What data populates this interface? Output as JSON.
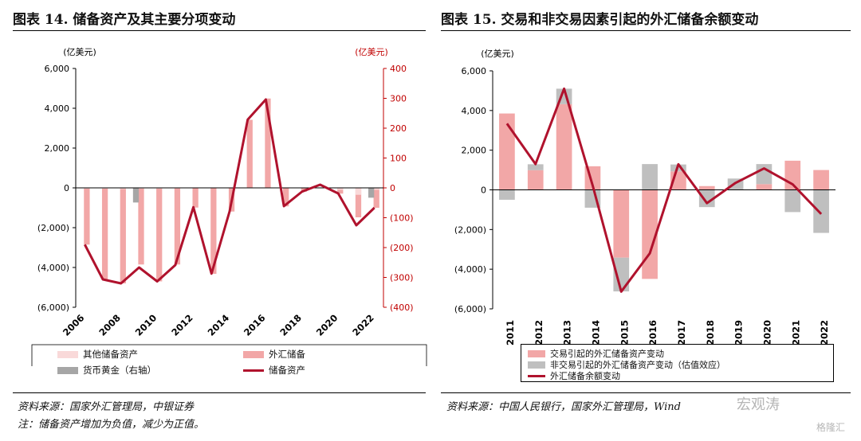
{
  "left": {
    "title": "图表 14. 储备资产及其主要分项变动",
    "unit_left": "(亿美元)",
    "unit_right": "(亿美元)",
    "source": "资料来源：国家外汇管理局，中银证券",
    "note": "注：储备资产增加为负值，减少为正值。"
  },
  "right": {
    "title": "图表 15. 交易和非交易因素引起的外汇储备余额变动",
    "unit_left": "(亿美元)",
    "source": "资料来源：中国人民银行，国家外汇管理局，Wind"
  },
  "watermark": {
    "text1": "宏观涛",
    "text2": "格隆汇"
  },
  "colors": {
    "pink": "#f2a7a7",
    "lightpink": "#f9d9d9",
    "gray": "#a6a6a6",
    "silver": "#bfbfbf",
    "line": "#b0122d",
    "axis_red": "#c00000"
  },
  "chart_data": [
    {
      "type": "bar",
      "title": "图表 14. 储备资产及其主要分项变动",
      "x": [
        "2006",
        "2007",
        "2008",
        "2009",
        "2010",
        "2011",
        "2012",
        "2013",
        "2014",
        "2015",
        "2016",
        "2017",
        "2018",
        "2019",
        "2020",
        "2021",
        "2022"
      ],
      "xticklabels": [
        "2006",
        "2008",
        "2010",
        "2012",
        "2014",
        "2016",
        "2018",
        "2020",
        "2022"
      ],
      "ylim_left": [
        -6000,
        6000
      ],
      "yticks_left": [
        6000,
        4000,
        2000,
        0,
        -2000,
        -4000,
        -6000
      ],
      "yticklabels_left": [
        "6,000",
        "4,000",
        "2,000",
        "0",
        "(2,000)",
        "(4,000)",
        "(6,000)"
      ],
      "ylim_right": [
        -400,
        400
      ],
      "yticks_right": [
        400,
        300,
        200,
        100,
        0,
        -100,
        -200,
        -300,
        -400
      ],
      "yticklabels_right": [
        "400",
        "300",
        "200",
        "100",
        "0",
        "(100)",
        "(200)",
        "(300)",
        "(400)"
      ],
      "series": [
        {
          "name": "其他储备资产",
          "axis": "left",
          "kind": "bar",
          "color": "#f9d9d9",
          "values": [
            -40,
            -40,
            -60,
            -40,
            -40,
            -30,
            -20,
            -10,
            -10,
            -20,
            -10,
            -20,
            -20,
            -10,
            -100,
            -350,
            -100
          ]
        },
        {
          "name": "外汇储备",
          "axis": "left",
          "kind": "bar",
          "color": "#f2a7a7",
          "values": [
            -2850,
            -4600,
            -4800,
            -3850,
            -4700,
            -3850,
            -990,
            -4320,
            -1190,
            3420,
            4490,
            -930,
            -190,
            20,
            -290,
            -1480,
            -1000
          ]
        },
        {
          "name": "货币黄金（右轴）",
          "axis": "right",
          "kind": "bar",
          "color": "#a6a6a6",
          "values": [
            0,
            0,
            0,
            -49,
            0,
            0,
            0,
            0,
            0,
            0,
            0,
            0,
            0,
            0,
            0,
            0,
            -33
          ]
        },
        {
          "name": "储备资产",
          "axis": "left",
          "kind": "line",
          "color": "#b0122d",
          "values": [
            -2850,
            -4600,
            -4800,
            -4000,
            -4700,
            -3880,
            -970,
            -4310,
            -1180,
            3430,
            4440,
            -920,
            -190,
            160,
            -280,
            -1880,
            -1000
          ]
        }
      ]
    },
    {
      "type": "bar",
      "title": "图表 15. 交易和非交易因素引起的外汇储备余额变动",
      "x": [
        "2011",
        "2012",
        "2013",
        "2014",
        "2015",
        "2016",
        "2017",
        "2018",
        "2019",
        "2020",
        "2021",
        "2022"
      ],
      "ylim": [
        -6000,
        6000
      ],
      "yticks": [
        6000,
        4000,
        2000,
        0,
        -2000,
        -4000,
        -6000
      ],
      "yticklabels": [
        "6,000",
        "4,000",
        "2,000",
        "0",
        "(2,000)",
        "(4,000)",
        "(6,000)"
      ],
      "series": [
        {
          "name": "交易引起的外汇储备资产变动",
          "kind": "bar",
          "color": "#f2a7a7",
          "values": [
            3850,
            990,
            4320,
            1190,
            -3420,
            -4490,
            930,
            190,
            -20,
            290,
            1470,
            1000
          ]
        },
        {
          "name": "非交易引起的外汇储备资产变动（估值效应）",
          "kind": "bar",
          "color": "#bfbfbf",
          "values": [
            -500,
            300,
            780,
            -900,
            -1700,
            1300,
            350,
            -870,
            570,
            1010,
            -1120,
            -2170
          ]
        },
        {
          "name": "外汇储备余额变动",
          "kind": "line",
          "color": "#b0122d",
          "values": [
            3340,
            1300,
            5100,
            220,
            -5130,
            -3200,
            1290,
            -670,
            350,
            1080,
            280,
            -1220
          ]
        }
      ]
    }
  ]
}
